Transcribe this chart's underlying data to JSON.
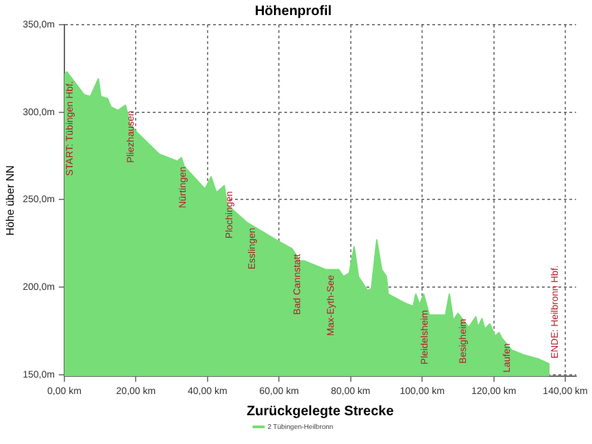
{
  "chart_data": {
    "type": "area",
    "title": "Höhenprofil",
    "xlabel": "Zurückgelegte Strecke",
    "ylabel": "Höhe über NN",
    "x": [
      0,
      0.7,
      5.5,
      7.3,
      9.5,
      10.2,
      11.6,
      12,
      13,
      15,
      17.1,
      18.2,
      20,
      26.5,
      31.6,
      32.7,
      33.5,
      39.3,
      41,
      42.5,
      44.7,
      45.5,
      51,
      60,
      63.6,
      65.8,
      67,
      73,
      76.7,
      78,
      79.6,
      81,
      82.2,
      84.7,
      85.8,
      87.3,
      88.7,
      90,
      90.5,
      95,
      97.5,
      98.2,
      99.3,
      100.4,
      102,
      106.5,
      107.6,
      108.7,
      110,
      113,
      115,
      115.6,
      116.7,
      117.5,
      118.9,
      120.4,
      121.5,
      122.2,
      125,
      128.7,
      132.4,
      135.6
    ],
    "series": [
      {
        "name": "2 Tübingen-Heilbronn",
        "color": "#77dd77",
        "values": [
          321,
          323,
          310,
          309,
          319,
          309,
          308,
          308,
          303,
          301,
          304,
          294,
          289,
          276,
          272,
          274,
          269,
          256,
          263,
          254,
          258,
          247,
          237,
          226,
          222,
          215,
          215,
          210,
          210,
          206,
          208,
          223,
          206,
          198,
          199,
          227,
          210,
          206,
          196,
          191,
          189,
          196,
          190,
          196,
          184,
          184,
          196,
          181,
          185,
          177,
          183,
          177,
          182,
          176,
          179,
          172,
          174,
          171,
          164,
          161,
          159,
          156
        ]
      }
    ],
    "xlim": [
      0,
      143
    ],
    "ylim": [
      149,
      350
    ],
    "xticks": [
      {
        "value": 0,
        "label": "0,00 km"
      },
      {
        "value": 20,
        "label": "20,00 km"
      },
      {
        "value": 40,
        "label": "40,00 km"
      },
      {
        "value": 60,
        "label": "60,00 km"
      },
      {
        "value": 80,
        "label": "80,00 km"
      },
      {
        "value": 100,
        "label": "100,00 km"
      },
      {
        "value": 120,
        "label": "120,00 km"
      },
      {
        "value": 140,
        "label": "140,00 km"
      }
    ],
    "yticks": [
      {
        "value": 150,
        "label": "150,0m"
      },
      {
        "value": 200,
        "label": "200,0m"
      },
      {
        "value": 250,
        "label": "250,0m"
      },
      {
        "value": 300,
        "label": "300,0m"
      },
      {
        "value": 350,
        "label": "350,0m"
      }
    ],
    "annotations": [
      {
        "text": "START: Tübingen Hbf.",
        "x": 0,
        "y": 321
      },
      {
        "text": "Pliezhausen",
        "x": 17.1,
        "y": 304
      },
      {
        "text": "Nürtingen",
        "x": 31.6,
        "y": 272
      },
      {
        "text": "Plochingen",
        "x": 44.7,
        "y": 258
      },
      {
        "text": "Esslingen",
        "x": 51,
        "y": 237
      },
      {
        "text": "Bad Cannstatt",
        "x": 63.6,
        "y": 222
      },
      {
        "text": "Max-Eyth-See",
        "x": 73,
        "y": 210
      },
      {
        "text": "Pleidelsheim",
        "x": 99.3,
        "y": 190
      },
      {
        "text": "Besigheim",
        "x": 110,
        "y": 185
      },
      {
        "text": "Laufen",
        "x": 122.2,
        "y": 171
      },
      {
        "text": "ENDE: Heilbronn Hbf.",
        "x": 135.6,
        "y": 156
      }
    ],
    "grid": true,
    "legend": "bottom",
    "marker": "none",
    "line_style": "solid"
  }
}
